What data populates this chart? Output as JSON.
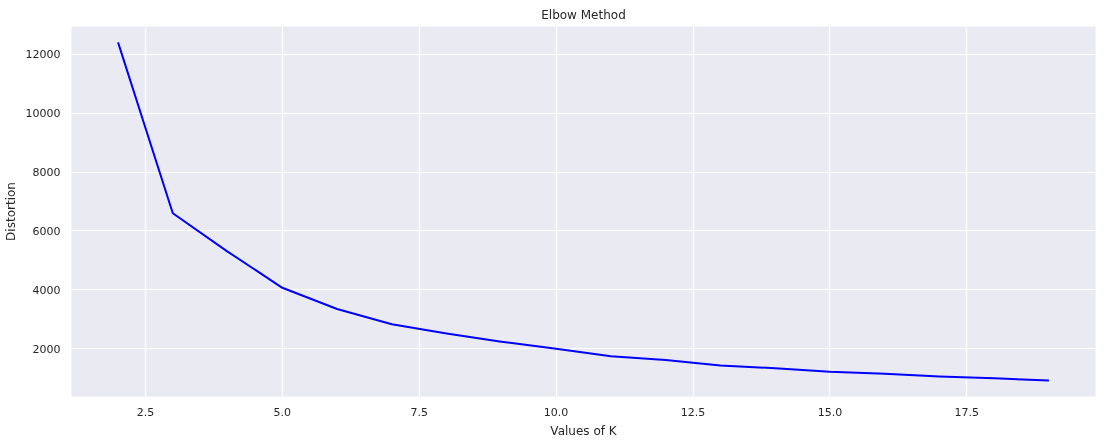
{
  "chart_data": {
    "type": "line",
    "title": "Elbow Method",
    "xlabel": "Values of K",
    "ylabel": "Distortion",
    "x": [
      2,
      3,
      4,
      5,
      6,
      7,
      8,
      9,
      10,
      11,
      12,
      13,
      14,
      15,
      16,
      17,
      18,
      19
    ],
    "series": [
      {
        "color": "#0000ff",
        "values": [
          12400,
          6600,
          5300,
          4070,
          3350,
          2830,
          2520,
          2240,
          2000,
          1750,
          1620,
          1430,
          1340,
          1220,
          1150,
          1060,
          1000,
          920
        ]
      }
    ],
    "xlim": [
      1.15,
      19.85
    ],
    "ylim": [
      380,
      12940
    ],
    "xticks": [
      {
        "value": 2.5,
        "label": "2.5"
      },
      {
        "value": 5,
        "label": "5.0"
      },
      {
        "value": 7.5,
        "label": "7.5"
      },
      {
        "value": 10,
        "label": "10.0"
      },
      {
        "value": 12.5,
        "label": "12.5"
      },
      {
        "value": 15,
        "label": "15.0"
      },
      {
        "value": 17.5,
        "label": "17.5"
      }
    ],
    "yticks": [
      2000,
      4000,
      6000,
      8000,
      10000,
      12000
    ],
    "grid": true,
    "marker": "none",
    "line_style": "solid"
  }
}
